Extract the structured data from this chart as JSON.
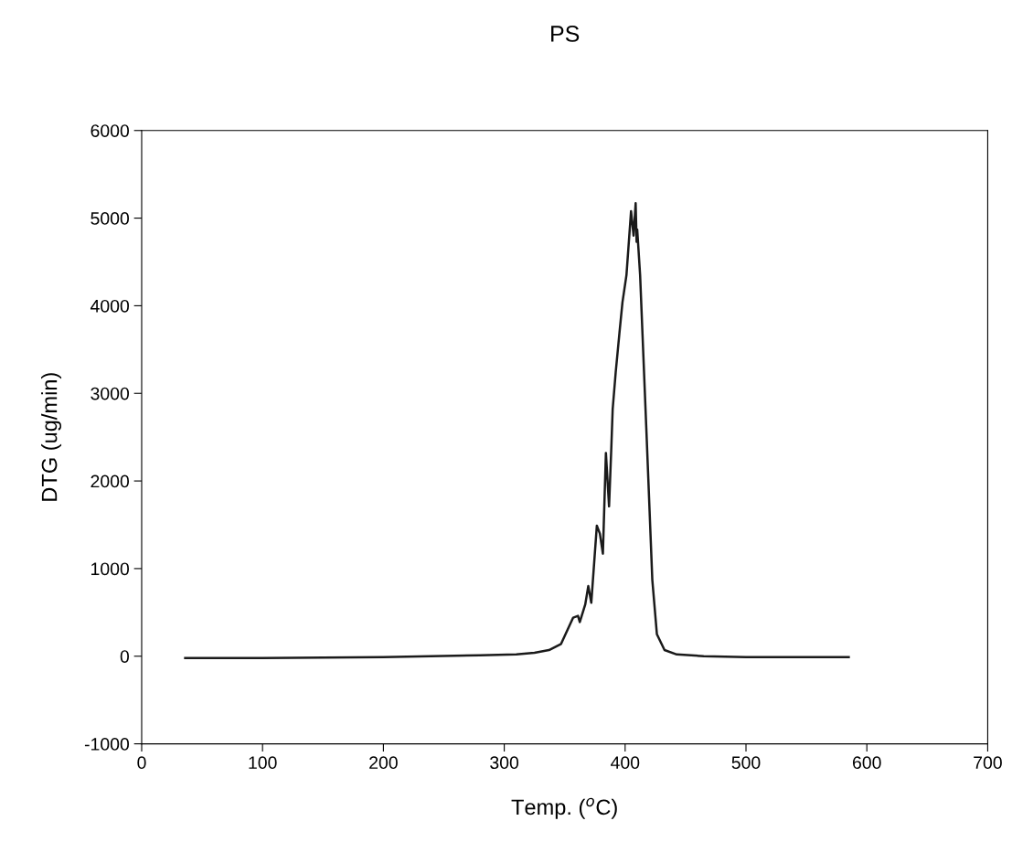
{
  "chart_data": {
    "type": "line",
    "title": "PS",
    "xlabel": "Temp. ($^{o}$C)",
    "ylabel": "DTG (ug/min)",
    "xlim": [
      0,
      700
    ],
    "xticks": [
      0,
      100,
      200,
      300,
      400,
      500,
      600,
      700
    ],
    "ylim": [
      -1000,
      6000
    ],
    "yticks": [
      -1000,
      0,
      1000,
      2000,
      3000,
      4000,
      5000,
      6000
    ],
    "grid": false,
    "marker": "none",
    "line_style": "solid",
    "series": [
      {
        "color": "#1a1a1a",
        "x": [
          36,
          100,
          200,
          280,
          310,
          325,
          337,
          347,
          357,
          361,
          362.5,
          367,
          369.5,
          372,
          376.6,
          379.1,
          381.6,
          384.1,
          386.7,
          388.5,
          389.7,
          392.2,
          395.3,
          397.8,
          401.1,
          404.9,
          407,
          408.7,
          409.5,
          410,
          412.4,
          417.5,
          422.5,
          426.3,
          432.6,
          442.7,
          465,
          500,
          585
        ],
        "values": [
          -20,
          -20,
          -10,
          10,
          20,
          40,
          70,
          140,
          440,
          460,
          390,
          590,
          800,
          610,
          1490,
          1400,
          1170,
          2320,
          1710,
          2350,
          2820,
          3240,
          3690,
          4040,
          4350,
          5080,
          4800,
          5170,
          4730,
          4870,
          4350,
          2610,
          870,
          250,
          70,
          20,
          0,
          -10,
          -10
        ]
      }
    ]
  }
}
